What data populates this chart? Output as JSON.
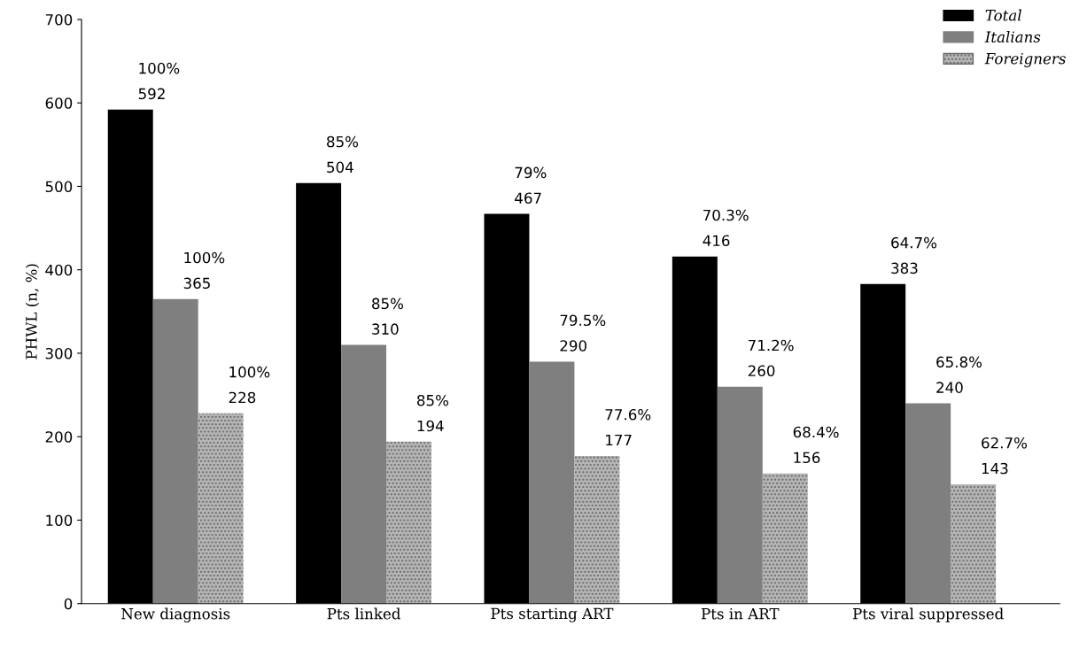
{
  "chart_data": {
    "type": "bar",
    "ylabel": "PHWL (n, %)",
    "categories": [
      "New diagnosis",
      "Pts linked",
      "Pts starting ART",
      "Pts in ART",
      "Pts viral suppressed"
    ],
    "series": [
      {
        "name": "Total",
        "color": "#000000",
        "values": [
          592,
          504,
          467,
          416,
          383
        ],
        "value_labels": [
          "100%\n592",
          "85%\n504",
          "79%\n467",
          "70.3%\n416",
          "64.7%\n383"
        ]
      },
      {
        "name": "Italians",
        "color": "#7f7f7f",
        "values": [
          365,
          310,
          290,
          260,
          240
        ],
        "value_labels": [
          "100%\n365",
          "85%\n310",
          "79.5%\n290",
          "71.2%\n260",
          "65.8%\n240"
        ]
      },
      {
        "name": "Foreigners",
        "color": "#b4b4b4",
        "values": [
          228,
          194,
          177,
          156,
          143
        ],
        "value_labels": [
          "100%\n228",
          "85%\n194",
          "77.6%\n177",
          "68.4%\n156",
          "62.7%\n143"
        ]
      }
    ],
    "ylim": [
      0,
      700
    ],
    "yticks": [
      0,
      100,
      200,
      300,
      400,
      500,
      600,
      700
    ],
    "grid": false,
    "legend": "top right"
  }
}
